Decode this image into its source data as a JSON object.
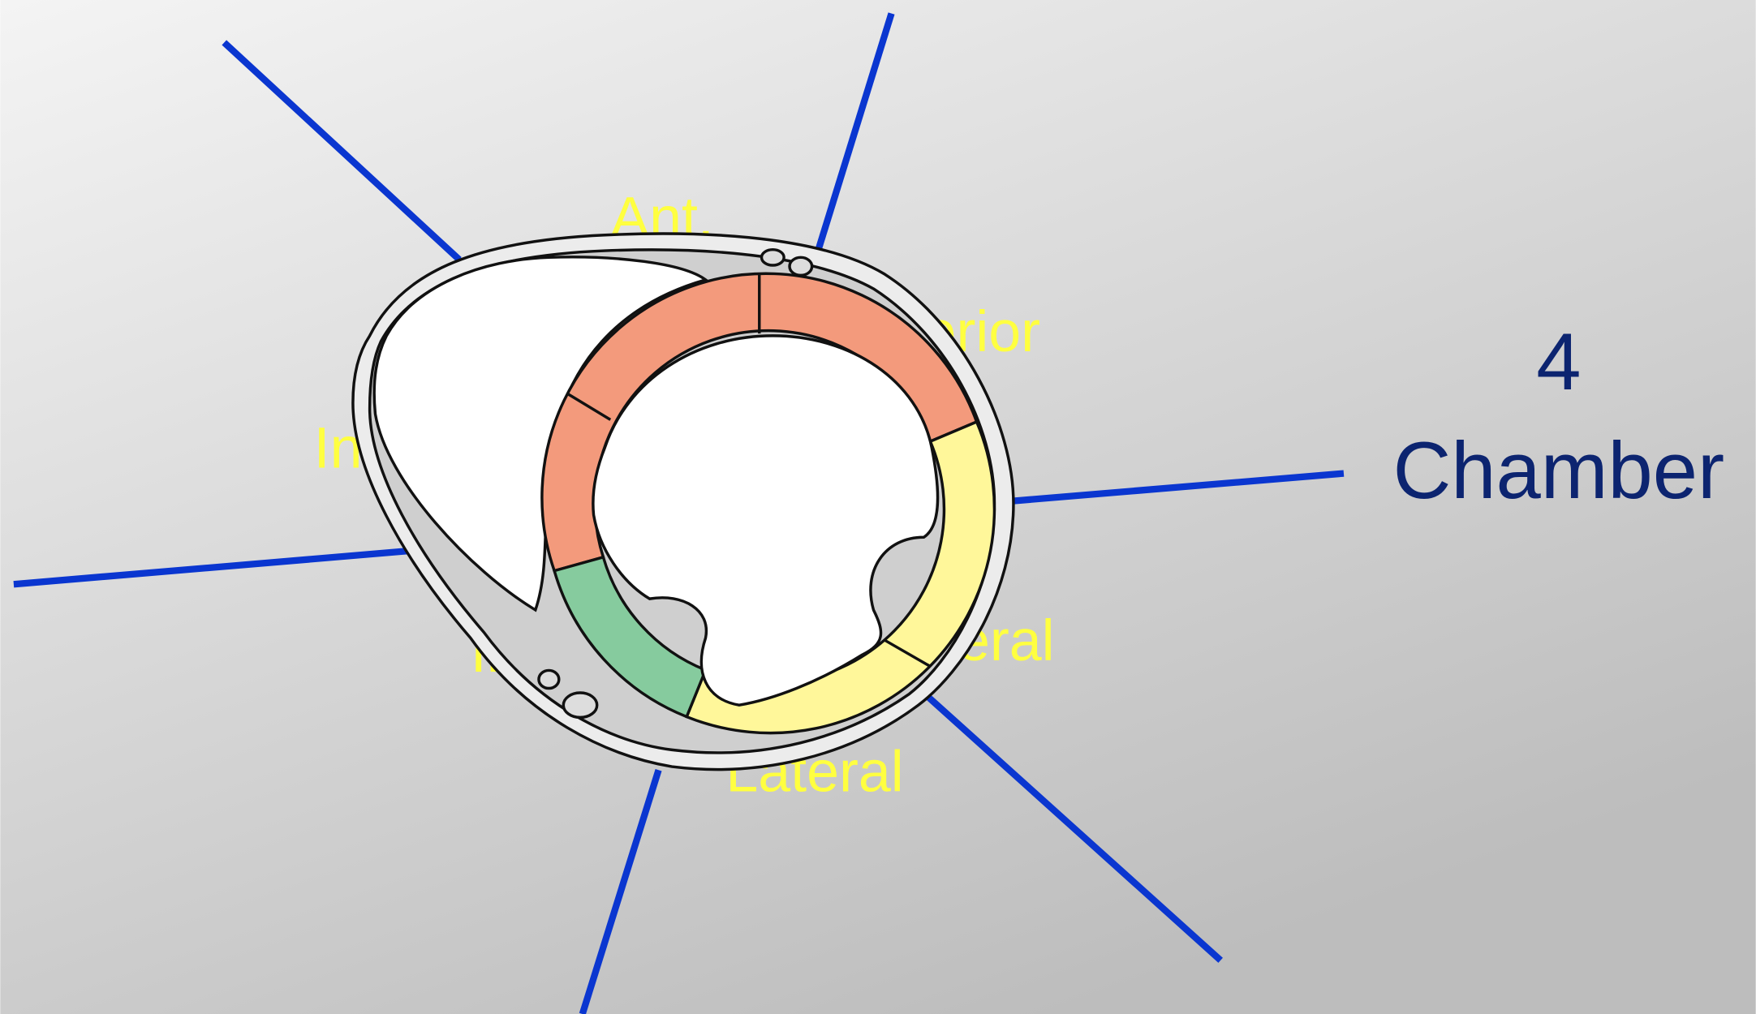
{
  "labels": [
    "Ant.",
    "erior",
    "In",
    "In",
    "eral",
    "Lateral"
  ],
  "view_label": [
    "4",
    "Chamber"
  ]
}
